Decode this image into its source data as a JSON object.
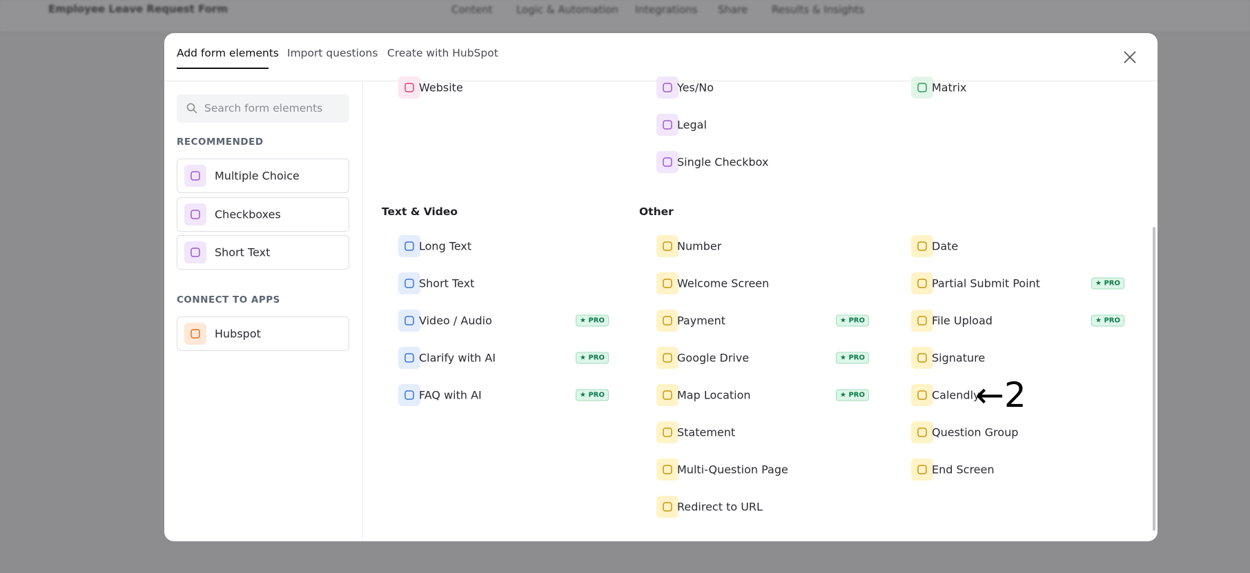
{
  "app": {
    "title": "Employee Leave Request Form",
    "nav": [
      "Content",
      "Logic & Automation",
      "Integrations",
      "Share",
      "Results & Insights"
    ]
  },
  "modal": {
    "tabs": [
      "Add form elements",
      "Import questions",
      "Create with HubSpot"
    ],
    "search_placeholder": "Search form elements",
    "sidebar": [
      {
        "heading": "RECOMMENDED",
        "items": [
          "Multiple Choice",
          "Checkboxes",
          "Short Text"
        ]
      },
      {
        "heading": "CONNECT TO APPS",
        "items": [
          "Hubspot"
        ]
      }
    ],
    "badge": "★ PRO",
    "top_columns": [
      [
        {
          "label": "Website"
        }
      ],
      [
        {
          "label": "Yes/No"
        },
        {
          "label": "Legal"
        },
        {
          "label": "Single Checkbox"
        }
      ],
      [
        {
          "label": "Matrix"
        }
      ]
    ],
    "sections": [
      {
        "heading": "Text & Video",
        "columns": [
          [
            {
              "label": "Long Text"
            },
            {
              "label": "Short Text"
            },
            {
              "label": "Video / Audio",
              "pro": true
            },
            {
              "label": "Clarify with AI",
              "pro": true
            },
            {
              "label": "FAQ with AI",
              "pro": true
            }
          ]
        ]
      },
      {
        "heading": "Other",
        "columns": [
          [
            {
              "label": "Number"
            },
            {
              "label": "Welcome Screen"
            },
            {
              "label": "Payment",
              "pro": true
            },
            {
              "label": "Google Drive",
              "pro": true
            },
            {
              "label": "Map Location",
              "pro": true
            },
            {
              "label": "Statement"
            },
            {
              "label": "Multi-Question Page"
            },
            {
              "label": "Redirect to URL"
            }
          ],
          [
            {
              "label": "Date"
            },
            {
              "label": "Partial Submit Point",
              "pro": true
            },
            {
              "label": "File Upload",
              "pro": true
            },
            {
              "label": "Signature"
            },
            {
              "label": "Calendly"
            },
            {
              "label": "Question Group"
            },
            {
              "label": "End Screen"
            }
          ]
        ]
      }
    ],
    "annotation": "←2"
  }
}
